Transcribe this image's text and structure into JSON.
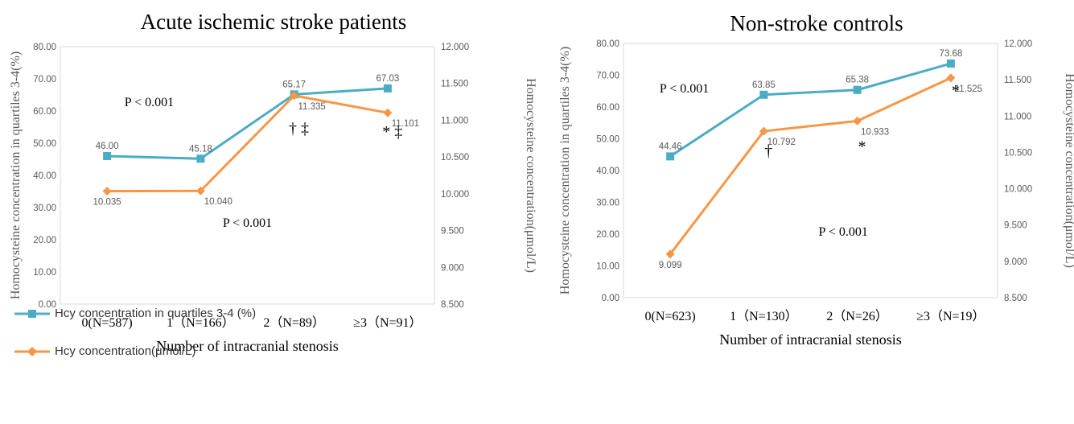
{
  "colors": {
    "hcy_pct": "#4BACC6",
    "hcy_conc": "#F79646",
    "axis_text": "#595959",
    "grid": "#D9D9D9"
  },
  "legend": [
    {
      "label": "Hcy concentration in quartiles 3-4 (%)",
      "color": "#4BACC6",
      "marker": "square"
    },
    {
      "label": "Hcy concentration(μmol/L)",
      "color": "#F79646",
      "marker": "diamond"
    }
  ],
  "chart_data": [
    {
      "type": "line",
      "title": "Acute ischemic stroke patients",
      "xlabel": "Number of intracranial stenosis",
      "ylabel_left": "Homocysteine concentration in quartiles 3-4(%)",
      "ylabel_right": "Homocysteine concentration(μmol/L)",
      "categories": [
        "0(N=587)",
        "1（N=166）",
        "2（N=89）",
        "≥3（N=91）"
      ],
      "left_axis": {
        "min": 0,
        "max": 80,
        "step": 10,
        "decimals": 2
      },
      "right_axis": {
        "min": 8.5,
        "max": 12.0,
        "step": 0.5,
        "decimals": 3
      },
      "series": [
        {
          "name": "Hcy concentration in quartiles 3-4 (%)",
          "axis": "left",
          "values": [
            46.0,
            45.18,
            65.17,
            67.03
          ],
          "labels": [
            "46.00",
            "45.18",
            "65.17",
            "67.03"
          ]
        },
        {
          "name": "Hcy concentration(μmol/L)",
          "axis": "right",
          "values": [
            10.035,
            10.04,
            11.335,
            11.101
          ],
          "labels": [
            "10.035",
            "10.040",
            "11.335",
            "11.101"
          ]
        }
      ],
      "annotations": [
        {
          "text": "P < 0.001",
          "x": 0.45,
          "y": 61.5
        },
        {
          "text": "P < 0.001",
          "x": 1.5,
          "y": 24
        },
        {
          "text": "† ‡",
          "x": 2.05,
          "y": 53
        },
        {
          "text": "* ‡",
          "x": 3.05,
          "y": 52
        }
      ]
    },
    {
      "type": "line",
      "title": "Non-stroke controls",
      "xlabel": "Number of intracranial stenosis",
      "ylabel_left": "Homocysteine concentration in quartiles 3-4(%)",
      "ylabel_right": "Homocysteine concentration(μmol/L)",
      "categories": [
        "0(N=623)",
        "1（N=130）",
        "2（N=26）",
        "≥3（N=19）"
      ],
      "left_axis": {
        "min": 0,
        "max": 80,
        "step": 10,
        "decimals": 2
      },
      "right_axis": {
        "min": 8.5,
        "max": 12.0,
        "step": 0.5,
        "decimals": 3
      },
      "series": [
        {
          "name": "Hcy concentration in quartiles 3-4 (%)",
          "axis": "left",
          "values": [
            44.46,
            63.85,
            65.38,
            73.68
          ],
          "labels": [
            "44.46",
            "63.85",
            "65.38",
            "73.68"
          ]
        },
        {
          "name": "Hcy concentration(μmol/L)",
          "axis": "right",
          "values": [
            9.099,
            10.792,
            10.933,
            11.525
          ],
          "labels": [
            "9.099",
            "10.792",
            "10.933",
            "11.525"
          ]
        }
      ],
      "annotations": [
        {
          "text": "P < 0.001",
          "x": 0.15,
          "y": 64.5
        },
        {
          "text": "P < 0.001",
          "x": 1.85,
          "y": 19.5
        },
        {
          "text": "†",
          "x": 1.05,
          "y": 44.5
        },
        {
          "text": "*",
          "x": 2.05,
          "y": 46
        },
        {
          "text": "*",
          "x": 3.05,
          "y": 63.5
        }
      ]
    }
  ]
}
